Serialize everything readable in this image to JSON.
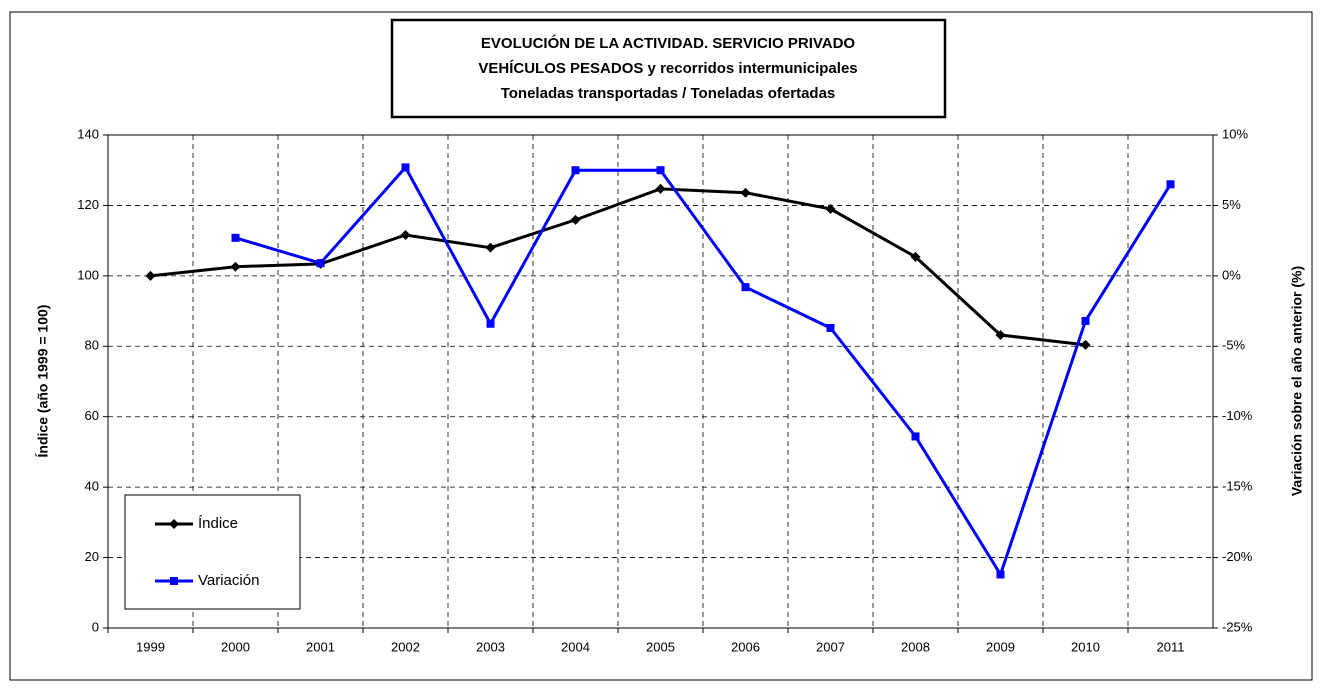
{
  "chart_data": {
    "type": "line",
    "title": [
      "EVOLUCIÓN DE LA ACTIVIDAD. SERVICIO PRIVADO",
      "VEHÍCULOS PESADOS y recorridos intermunicipales",
      "Toneladas transportadas / Toneladas ofertadas"
    ],
    "y_label": "Índice (año 1999 = 100)",
    "y2_label": "Variación sobre el año anterior (%)",
    "categories": [
      "1999",
      "2000",
      "2001",
      "2002",
      "2003",
      "2004",
      "2005",
      "2006",
      "2007",
      "2008",
      "2009",
      "2010",
      "2011"
    ],
    "series": [
      {
        "name": "Índice",
        "color": "#000000",
        "marker": "diamond",
        "values": [
          100,
          102.6,
          103.4,
          111.6,
          108,
          115.9,
          124.7,
          123.6,
          119,
          105.4,
          83.2,
          80.4,
          null
        ]
      },
      {
        "name": "Variación",
        "color": "#0000ff",
        "marker": "square",
        "axis": "y2",
        "values": [
          null,
          2.7,
          0.9,
          7.7,
          -3.4,
          7.5,
          7.5,
          -0.8,
          -3.7,
          -11.4,
          -21.2,
          -3.2,
          6.5
        ]
      }
    ],
    "ylim": [
      0,
      140
    ],
    "yticks": [
      0,
      20,
      40,
      60,
      80,
      100,
      120,
      140
    ],
    "y2lim": [
      -25,
      10
    ],
    "y2ticks": [
      {
        "value": -25,
        "label": "-25%"
      },
      {
        "value": -20,
        "label": "-20%"
      },
      {
        "value": -15,
        "label": "-15%"
      },
      {
        "value": -10,
        "label": "-10%"
      },
      {
        "value": -5,
        "label": "-5%"
      },
      {
        "value": 0,
        "label": "0%"
      },
      {
        "value": 5,
        "label": "5%"
      },
      {
        "value": 10,
        "label": "10%"
      }
    ],
    "grid": true,
    "legend": "lower left"
  }
}
